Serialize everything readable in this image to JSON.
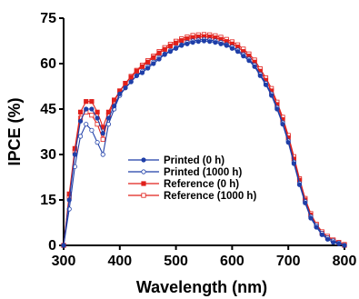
{
  "chart_data": {
    "type": "line",
    "title": "",
    "xlabel": "Wavelength (nm)",
    "ylabel": "IPCE (%)",
    "xlim": [
      300,
      800
    ],
    "ylim": [
      0,
      75
    ],
    "xticks": [
      300,
      400,
      500,
      600,
      700,
      800
    ],
    "yticks": [
      0,
      15,
      30,
      45,
      60,
      75
    ],
    "grid": false,
    "legend_position": "center",
    "series": [
      {
        "name": "Printed  (0 h)",
        "color": "#1f3fa8",
        "marker": "filled-circle",
        "x": [
          300,
          310,
          320,
          330,
          340,
          350,
          360,
          370,
          380,
          390,
          400,
          410,
          420,
          430,
          440,
          450,
          460,
          470,
          480,
          490,
          500,
          510,
          520,
          530,
          540,
          550,
          560,
          570,
          580,
          590,
          600,
          610,
          620,
          630,
          640,
          650,
          660,
          670,
          680,
          690,
          700,
          710,
          720,
          730,
          740,
          750,
          760,
          770,
          780,
          790,
          800
        ],
        "y": [
          0,
          15,
          30,
          41,
          45,
          45,
          42,
          37,
          42,
          46,
          50,
          52,
          54,
          56,
          57,
          58.5,
          60,
          61.5,
          63,
          64,
          65,
          66,
          66.5,
          67,
          67.3,
          67.5,
          67.3,
          67,
          66.5,
          66,
          65,
          64,
          62.5,
          61,
          59,
          56,
          53,
          49.5,
          45,
          40,
          34,
          27,
          20,
          14,
          9,
          6,
          3.5,
          2,
          1,
          0.5,
          0
        ]
      },
      {
        "name": "Printed (1000 h)",
        "color": "#1f3fa8",
        "marker": "open-circle",
        "x": [
          300,
          310,
          320,
          330,
          340,
          350,
          360,
          370,
          380,
          390,
          400,
          410,
          420,
          430,
          440,
          450,
          460,
          470,
          480,
          490,
          500,
          510,
          520,
          530,
          540,
          550,
          560,
          570,
          580,
          590,
          600,
          610,
          620,
          630,
          640,
          650,
          660,
          670,
          680,
          690,
          700,
          710,
          720,
          730,
          740,
          750,
          760,
          770,
          780,
          790,
          800
        ],
        "y": [
          0,
          12,
          26,
          36,
          40,
          38,
          34,
          30,
          40,
          45,
          49.5,
          52,
          54,
          56,
          57.5,
          59,
          60.5,
          62,
          63.2,
          64.3,
          65.3,
          66.2,
          67,
          67.5,
          67.8,
          68,
          67.8,
          67.5,
          67,
          66.3,
          65.5,
          64.5,
          63,
          61.5,
          59.5,
          56.5,
          53.5,
          50,
          45.5,
          40.5,
          34.5,
          27.5,
          20.5,
          14.5,
          9.5,
          6.5,
          4,
          2.5,
          1.5,
          0.8,
          0
        ]
      },
      {
        "name": "Reference  (0 h)",
        "color": "#e0201b",
        "marker": "filled-square",
        "x": [
          300,
          310,
          320,
          330,
          340,
          350,
          360,
          370,
          380,
          390,
          400,
          410,
          420,
          430,
          440,
          450,
          460,
          470,
          480,
          490,
          500,
          510,
          520,
          530,
          540,
          550,
          560,
          570,
          580,
          590,
          600,
          610,
          620,
          630,
          640,
          650,
          660,
          670,
          680,
          690,
          700,
          710,
          720,
          730,
          740,
          750,
          760,
          770,
          780,
          790,
          800
        ],
        "y": [
          0,
          17,
          32,
          44,
          47.5,
          47.5,
          44,
          39,
          44,
          48,
          51,
          53.5,
          55.5,
          57.5,
          59,
          60.5,
          62,
          63.5,
          64.7,
          65.8,
          66.8,
          67.6,
          68.2,
          68.6,
          68.8,
          68.9,
          68.8,
          68.5,
          68,
          67.3,
          66.5,
          65.5,
          64,
          62.5,
          60.5,
          57.5,
          54.5,
          51,
          46.5,
          41.5,
          35.5,
          28.5,
          21.5,
          15,
          10,
          6.5,
          4,
          2.5,
          1.5,
          0.8,
          0
        ]
      },
      {
        "name": "Reference  (1000 h)",
        "color": "#e0201b",
        "marker": "open-square",
        "x": [
          300,
          310,
          320,
          330,
          340,
          350,
          360,
          370,
          380,
          390,
          400,
          410,
          420,
          430,
          440,
          450,
          460,
          470,
          480,
          490,
          500,
          510,
          520,
          530,
          540,
          550,
          560,
          570,
          580,
          590,
          600,
          610,
          620,
          630,
          640,
          650,
          660,
          670,
          680,
          690,
          700,
          710,
          720,
          730,
          740,
          750,
          760,
          770,
          780,
          790,
          800
        ],
        "y": [
          0,
          16,
          31,
          42,
          44,
          43,
          40,
          35,
          43,
          47.5,
          51,
          53.5,
          55.8,
          57.8,
          59.5,
          61,
          62.5,
          64,
          65.3,
          66.4,
          67.4,
          68.2,
          68.8,
          69.3,
          69.5,
          69.6,
          69.5,
          69.2,
          68.7,
          68,
          67.2,
          66.2,
          64.8,
          63.2,
          61.2,
          58.3,
          55.3,
          51.8,
          47.3,
          42.3,
          36.3,
          29.3,
          22,
          15.5,
          10.5,
          7,
          4.5,
          3,
          1.8,
          1,
          0.3
        ]
      }
    ]
  }
}
